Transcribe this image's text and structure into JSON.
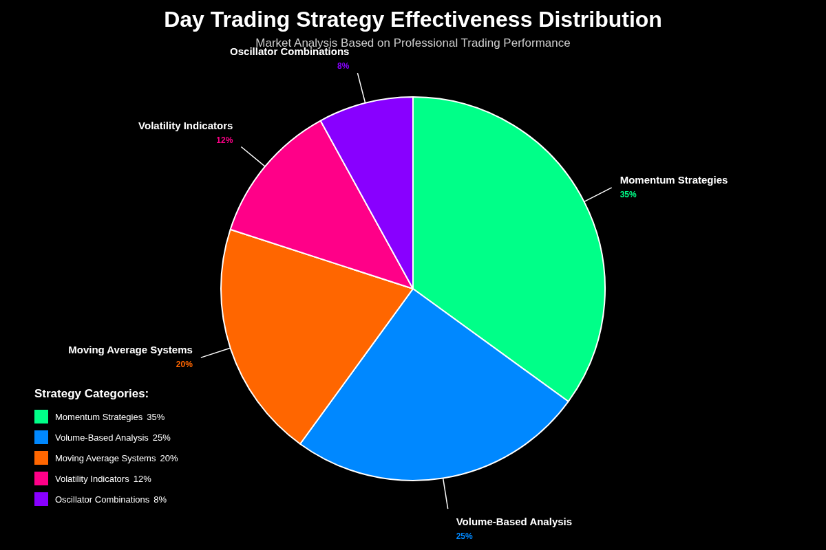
{
  "chart_data": {
    "type": "pie",
    "title": "Day Trading Strategy Effectiveness Distribution",
    "subtitle": "Market Analysis Based on Professional Trading Performance",
    "legend_title": "Strategy Categories:",
    "legend": "bottom left",
    "categories": [
      "Momentum Strategies",
      "Volume-Based Analysis",
      "Moving Average Systems",
      "Volatility Indicators",
      "Oscillator Combinations"
    ],
    "values": [
      35,
      25,
      20,
      12,
      8
    ],
    "value_labels": [
      "35%",
      "25%",
      "20%",
      "12%",
      "8%"
    ],
    "colors": [
      "#00ff88",
      "#0088ff",
      "#ff6600",
      "#ff0088",
      "#8800ff"
    ]
  }
}
